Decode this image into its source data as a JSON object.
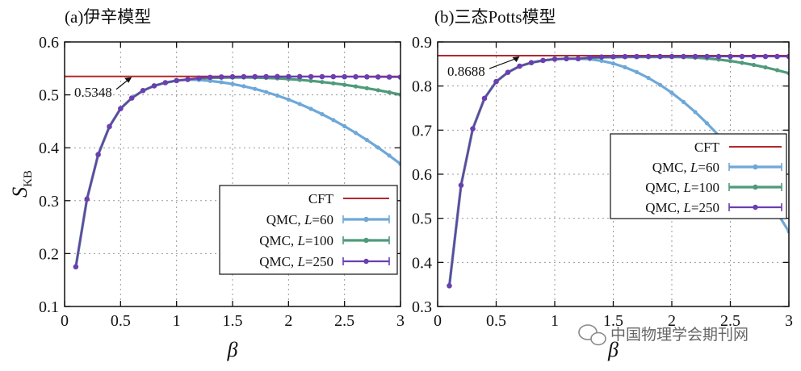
{
  "watermark": "中国物理学会期刊网",
  "colors": {
    "cft": "#b2282e",
    "l60": "#6ea8d8",
    "l100": "#4f9a7a",
    "l250": "#6a3fb0"
  },
  "chart_data": [
    {
      "type": "line",
      "title": "(a)伊辛模型",
      "xlabel": "β",
      "ylabel": "S",
      "ylabel_sub": "KB",
      "xlim": [
        0,
        3
      ],
      "ylim": [
        0.1,
        0.6
      ],
      "xticks": [
        0,
        0.5,
        1,
        1.5,
        2,
        2.5,
        3
      ],
      "xtick_labels": [
        "0",
        "0.5",
        "1",
        "1.5",
        "2",
        "2.5",
        "3"
      ],
      "yticks": [
        0.1,
        0.2,
        0.3,
        0.4,
        0.5,
        0.6
      ],
      "ytick_labels": [
        "0.1",
        "0.2",
        "0.3",
        "0.4",
        "0.5",
        "0.6"
      ],
      "grid": true,
      "legend_position": "bottom-right",
      "cft_value": 0.5348,
      "annotation": {
        "text": "0.5348",
        "x": 0.6,
        "y": 0.5348
      },
      "series": [
        {
          "name": "CFT",
          "label_prefix": "CFT",
          "L": "",
          "color": "#b2282e",
          "kind": "hline",
          "value": 0.5348
        },
        {
          "name": "QMC, L=60",
          "label_prefix": "QMC, ",
          "L": "60",
          "color": "#6ea8d8",
          "kind": "qmc",
          "peak_x": 1.05,
          "peak_y": 0.529,
          "decay": 0.042
        },
        {
          "name": "QMC, L=100",
          "label_prefix": "QMC, ",
          "L": "100",
          "color": "#4f9a7a",
          "kind": "qmc",
          "peak_x": 1.55,
          "peak_y": 0.533,
          "decay": 0.0155
        },
        {
          "name": "QMC, L=250",
          "label_prefix": "QMC, ",
          "L": "250",
          "color": "#6a3fb0",
          "kind": "qmc",
          "peak_x": 2.0,
          "peak_y": 0.5345,
          "decay": 0.001
        }
      ],
      "rise_points": [
        [
          0.1,
          0.175
        ],
        [
          0.2,
          0.303
        ],
        [
          0.3,
          0.387
        ],
        [
          0.4,
          0.44
        ],
        [
          0.5,
          0.474
        ],
        [
          0.6,
          0.494
        ],
        [
          0.7,
          0.508
        ],
        [
          0.8,
          0.517
        ],
        [
          0.9,
          0.523
        ],
        [
          1.0,
          0.527
        ],
        [
          1.1,
          0.529
        ]
      ]
    },
    {
      "type": "line",
      "title": "(b)三态Potts模型",
      "xlabel": "β",
      "ylabel": "",
      "ylabel_sub": "",
      "xlim": [
        0,
        3
      ],
      "ylim": [
        0.3,
        0.9
      ],
      "xticks": [
        0,
        0.5,
        1,
        1.5,
        2,
        2.5,
        3
      ],
      "xtick_labels": [
        "0",
        "0.5",
        "1",
        "1.5",
        "2",
        "2.5",
        "3"
      ],
      "yticks": [
        0.3,
        0.4,
        0.5,
        0.6,
        0.7,
        0.8,
        0.9
      ],
      "ytick_labels": [
        "0.3",
        "0.4",
        "0.5",
        "0.6",
        "0.7",
        "0.8",
        "0.9"
      ],
      "grid": true,
      "legend_position": "middle-right",
      "cft_value": 0.8688,
      "annotation": {
        "text": "0.8688",
        "x": 0.7,
        "y": 0.8688
      },
      "series": [
        {
          "name": "CFT",
          "label_prefix": "CFT",
          "L": "",
          "color": "#b2282e",
          "kind": "hline",
          "value": 0.8688
        },
        {
          "name": "QMC, L=60",
          "label_prefix": "QMC, ",
          "L": "60",
          "color": "#6ea8d8",
          "kind": "qmc",
          "peak_x": 1.2,
          "peak_y": 0.862,
          "decay": 0.121
        },
        {
          "name": "QMC, L=100",
          "label_prefix": "QMC, ",
          "L": "100",
          "color": "#4f9a7a",
          "kind": "qmc",
          "peak_x": 2.0,
          "peak_y": 0.866,
          "decay": 0.037
        },
        {
          "name": "QMC, L=250",
          "label_prefix": "QMC, ",
          "L": "250",
          "color": "#6a3fb0",
          "kind": "qmc",
          "peak_x": 2.0,
          "peak_y": 0.867,
          "decay": 0.0
        }
      ],
      "rise_points": [
        [
          0.1,
          0.347
        ],
        [
          0.2,
          0.575
        ],
        [
          0.3,
          0.703
        ],
        [
          0.4,
          0.772
        ],
        [
          0.5,
          0.81
        ],
        [
          0.6,
          0.831
        ],
        [
          0.7,
          0.845
        ],
        [
          0.8,
          0.853
        ],
        [
          0.9,
          0.858
        ],
        [
          1.0,
          0.861
        ],
        [
          1.1,
          0.862
        ],
        [
          1.2,
          0.862
        ]
      ]
    }
  ]
}
